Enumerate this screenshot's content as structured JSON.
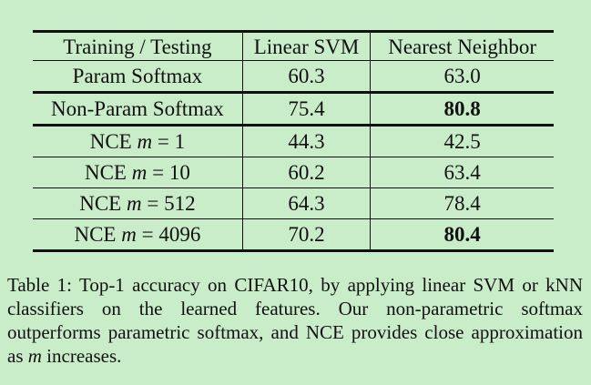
{
  "table": {
    "headers": [
      "Training / Testing",
      "Linear SVM",
      "Nearest Neighbor"
    ],
    "rows": [
      {
        "method": "Param Softmax",
        "svm": "60.3",
        "nn": "63.0",
        "nn_bold": false
      },
      {
        "method": "Non-Param Softmax",
        "svm": "75.4",
        "nn": "80.8",
        "nn_bold": true
      },
      {
        "method_prefix": "NCE",
        "m_var": "m",
        "eq": " = ",
        "m_val": "1",
        "svm": "44.3",
        "nn": "42.5",
        "nn_bold": false
      },
      {
        "method_prefix": "NCE",
        "m_var": "m",
        "eq": " = ",
        "m_val": "10",
        "svm": "60.2",
        "nn": "63.4",
        "nn_bold": false
      },
      {
        "method_prefix": "NCE",
        "m_var": "m",
        "eq": " = ",
        "m_val": "512",
        "svm": "64.3",
        "nn": "78.4",
        "nn_bold": false
      },
      {
        "method_prefix": "NCE",
        "m_var": "m",
        "eq": " = ",
        "m_val": "4096",
        "svm": "70.2",
        "nn": "80.4",
        "nn_bold": true
      }
    ]
  },
  "caption": {
    "label": "Table 1:",
    "text_before": "Top-1 accuracy on CIFAR10, by applying linear SVM or kNN classifiers on the learned features. Our non-parametric softmax outperforms parametric softmax, and NCE provides close approximation as",
    "m_var": "m",
    "text_after": "increases."
  }
}
